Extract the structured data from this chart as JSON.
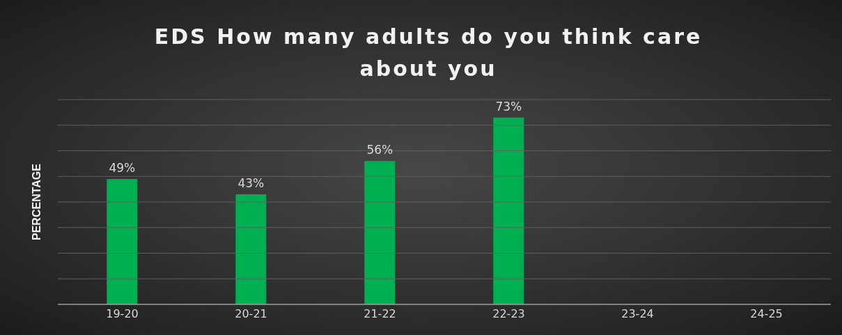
{
  "chart_data": {
    "type": "bar",
    "title": "EDS How many adults do you think care about you",
    "ylabel": "PERCENTAGE",
    "categories": [
      "19-20",
      "20-21",
      "21-22",
      "22-23",
      "23-24",
      "24-25"
    ],
    "values": [
      49,
      43,
      56,
      73,
      null,
      null
    ],
    "color": "#00b050",
    "value_labels": [
      "49%",
      "43%",
      "56%",
      "73%",
      null,
      null
    ],
    "ylim": [
      0,
      80
    ],
    "yticks": [
      {
        "value": 0,
        "label": null
      },
      {
        "value": 10,
        "label": null
      },
      {
        "value": 20,
        "label": null
      },
      {
        "value": 30,
        "label": null
      },
      {
        "value": 40,
        "label": null
      },
      {
        "value": 50,
        "label": null
      },
      {
        "value": 60,
        "label": null
      },
      {
        "value": 70,
        "label": null
      },
      {
        "value": 80,
        "label": null
      }
    ],
    "grid": "y",
    "tick_labels": "x"
  }
}
